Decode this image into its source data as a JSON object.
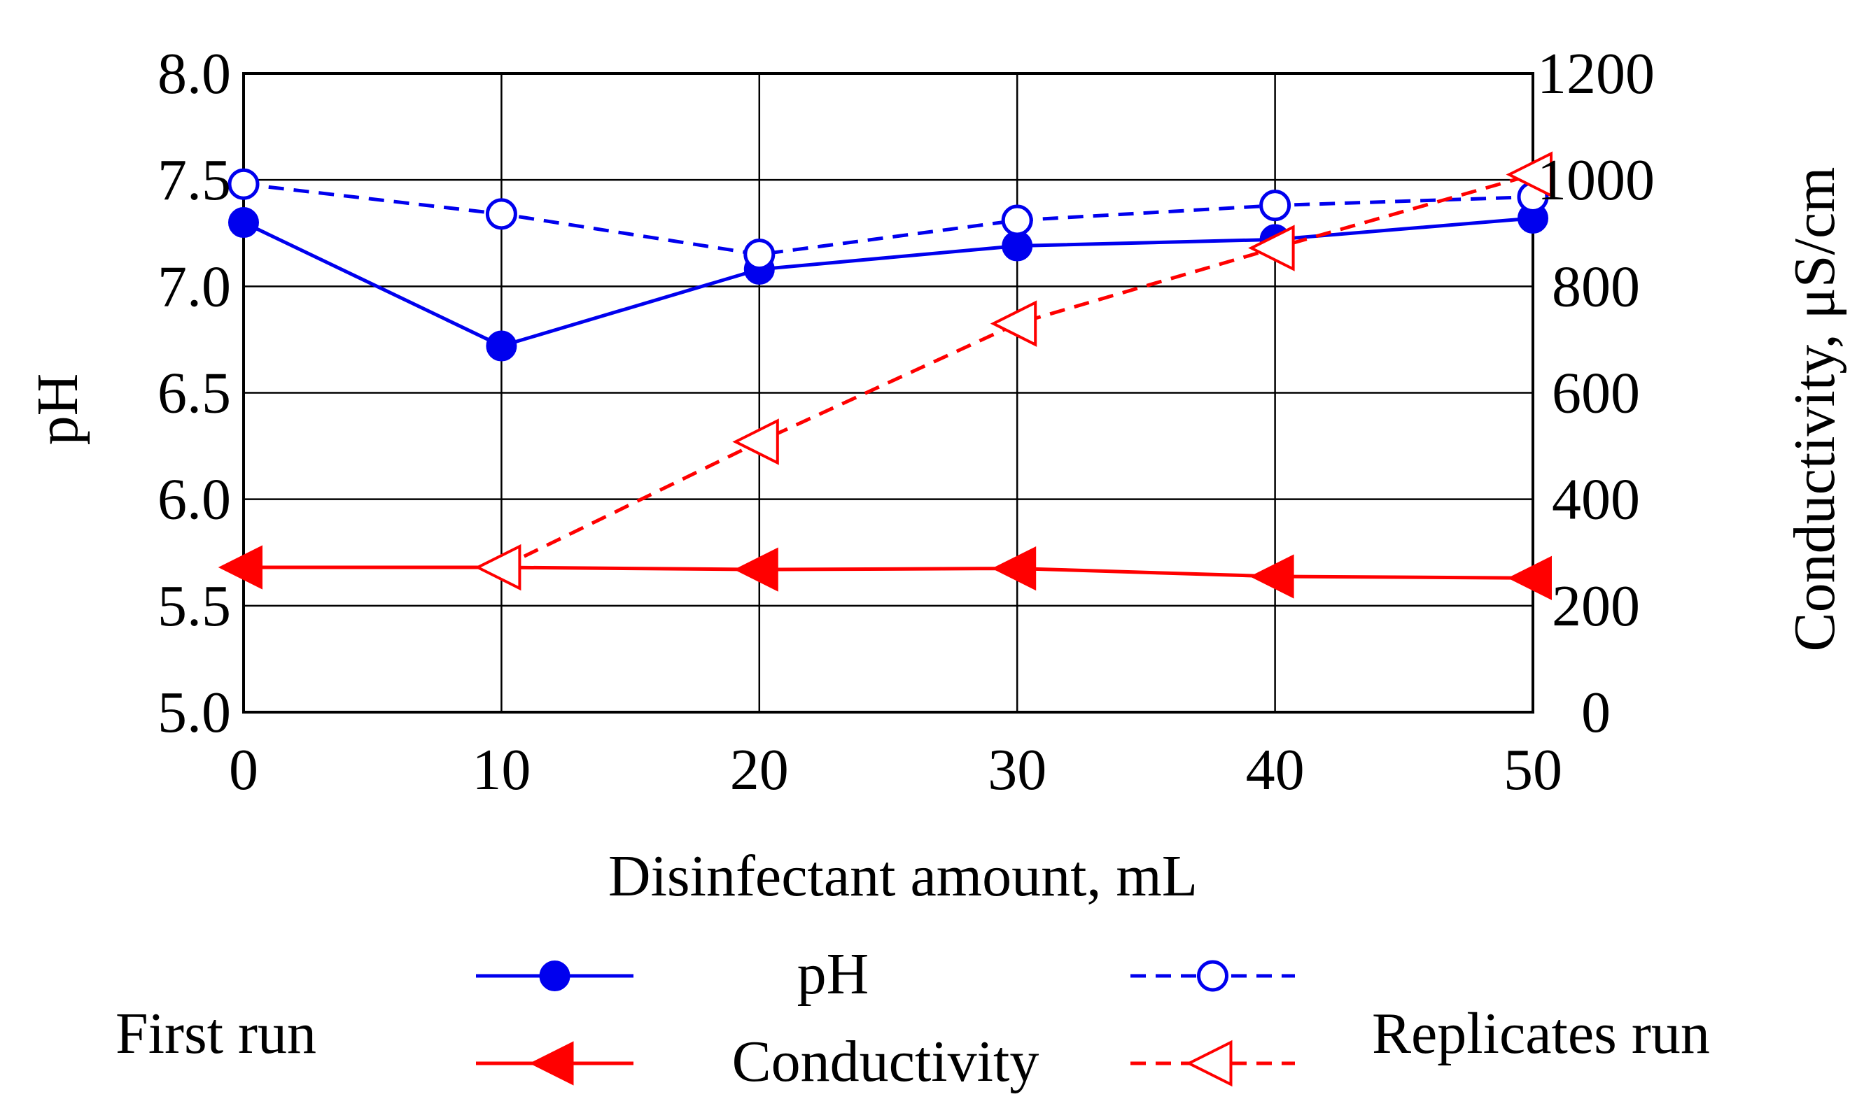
{
  "chart_data": {
    "type": "line",
    "xlabel": "Disinfectant amount, mL",
    "ylabel_left": "pH",
    "ylabel_right": "Conductivity, μS/cm",
    "x": [
      0,
      10,
      20,
      30,
      40,
      50
    ],
    "x_ticks": [
      "0",
      "10",
      "20",
      "30",
      "40",
      "50"
    ],
    "xlim": [
      0,
      50
    ],
    "ylim_left": [
      5.0,
      8.0
    ],
    "ylim_right": [
      0,
      1200
    ],
    "y_ticks_left": [
      "5.0",
      "5.5",
      "6.0",
      "6.5",
      "7.0",
      "7.5",
      "8.0"
    ],
    "y_ticks_right": [
      "0",
      "200",
      "400",
      "600",
      "800",
      "1000",
      "1200"
    ],
    "grid": true,
    "series": [
      {
        "name": "pH (First run)",
        "axis": "left",
        "style": "solid",
        "marker": "filled-circle",
        "color": "#0000ee",
        "values": [
          7.3,
          6.72,
          7.08,
          7.19,
          7.22,
          7.32
        ]
      },
      {
        "name": "pH (Replicates run)",
        "axis": "left",
        "style": "dashed",
        "marker": "open-circle",
        "color": "#0000ee",
        "values": [
          7.48,
          7.34,
          7.15,
          7.31,
          7.38,
          7.42
        ]
      },
      {
        "name": "Conductivity (First run)",
        "axis": "right",
        "style": "solid",
        "marker": "filled-triangle",
        "color": "#ff0000",
        "values": [
          272,
          272,
          268,
          270,
          255,
          252
        ]
      },
      {
        "name": "Conductivity (Replicates run)",
        "axis": "right",
        "style": "dashed",
        "marker": "open-triangle",
        "color": "#ff0000",
        "values": [
          null,
          272,
          508,
          730,
          872,
          1010
        ]
      }
    ],
    "legend": {
      "first_run": "First run",
      "replicates_run": "Replicates run",
      "ph": "pH",
      "conductivity": "Conductivity"
    }
  }
}
